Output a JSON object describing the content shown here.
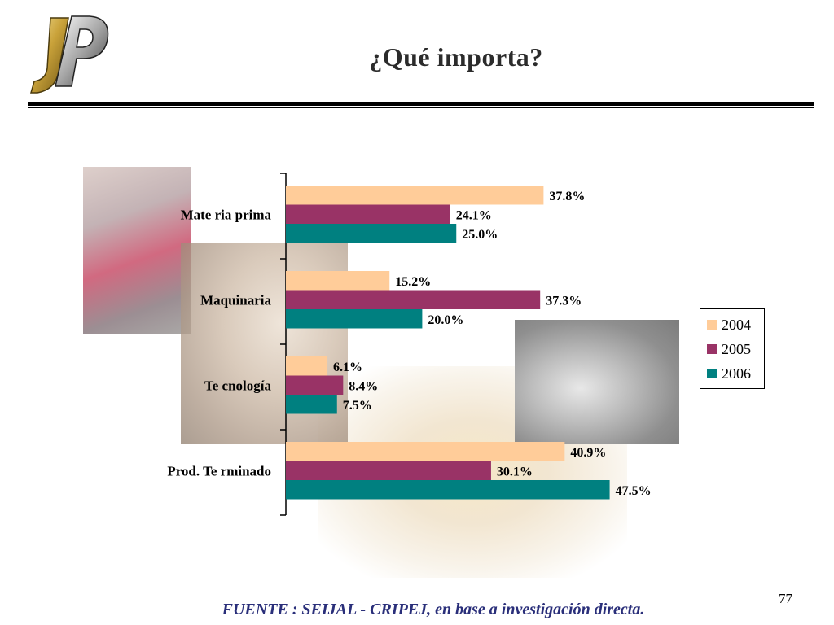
{
  "slide": {
    "title": "¿Qué importa?",
    "page_number": "77",
    "footer": "FUENTE :  SEIJAL - CRIPEJ,  en base a investigación directa."
  },
  "logo": {
    "text": "JP",
    "icon": "jp-logo-icon"
  },
  "colors": {
    "2004": "#FFCC99",
    "2005": "#993366",
    "2006": "#008080"
  },
  "chart_data": {
    "type": "bar",
    "orientation": "horizontal",
    "categories": [
      "Materia prima",
      "Maquinaria",
      "Tecnología",
      "Prod. Terminado"
    ],
    "category_labels": [
      "Mate ria prima",
      "Maquinaria",
      "Te cnología",
      "Prod. Te rminado"
    ],
    "series": [
      {
        "name": "2004",
        "values": [
          37.8,
          15.2,
          6.1,
          40.9
        ],
        "labels": [
          "37.8%",
          "15.2%",
          "6.1%",
          "40.9%"
        ]
      },
      {
        "name": "2005",
        "values": [
          24.1,
          37.3,
          8.4,
          30.1
        ],
        "labels": [
          "24.1%",
          "37.3%",
          "8.4%",
          "30.1%"
        ]
      },
      {
        "name": "2006",
        "values": [
          25.0,
          20.0,
          7.5,
          47.5
        ],
        "labels": [
          "25.0%",
          "20.0%",
          "7.5%",
          "47.5%"
        ]
      }
    ],
    "xlim": [
      0,
      50
    ],
    "unit": "%",
    "grid": false,
    "legend_position": "right"
  }
}
